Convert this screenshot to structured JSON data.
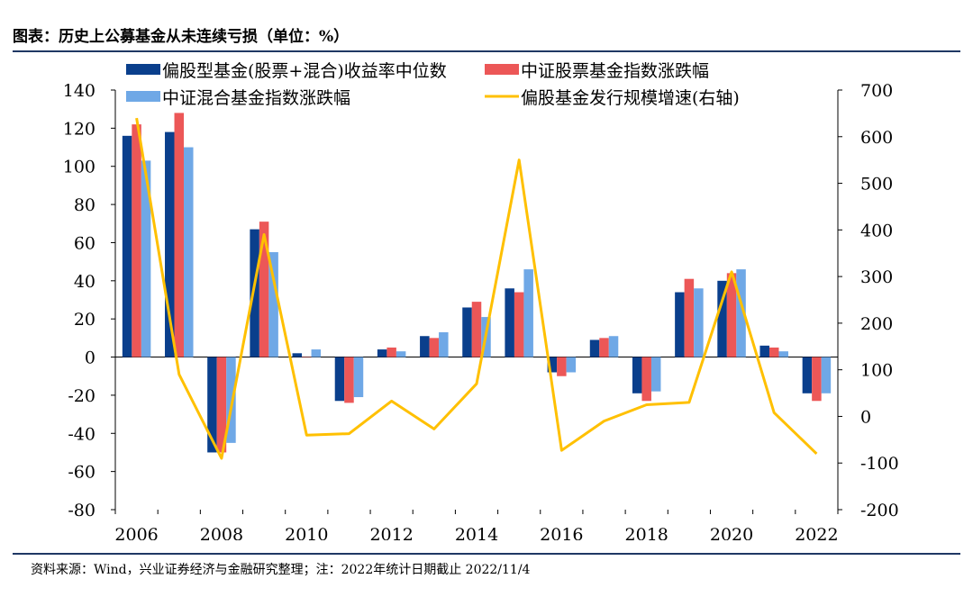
{
  "header": {
    "title": "图表：历史上公募基金从未连续亏损（单位：%）"
  },
  "footer": {
    "source": "资料来源：Wind，兴业证券经济与金融研究整理；注：2022年统计日期截止 2022/11/4"
  },
  "colors": {
    "bar1": "#0a3f8c",
    "bar2": "#ec5757",
    "bar3": "#6fa8e6",
    "line": "#ffc000",
    "rule": "#1f3864"
  },
  "chart_data": {
    "type": "bar",
    "title": "",
    "xlabel": "",
    "ylabel": "",
    "x": [
      2006,
      2007,
      2008,
      2009,
      2010,
      2011,
      2012,
      2013,
      2014,
      2015,
      2016,
      2017,
      2018,
      2019,
      2020,
      2021,
      2022
    ],
    "x_tick_labels": [
      "2006",
      "2008",
      "2010",
      "2012",
      "2014",
      "2016",
      "2018",
      "2020",
      "2022"
    ],
    "ylim": [
      -80,
      140
    ],
    "y_ticks": [
      -80,
      -60,
      -40,
      -20,
      0,
      20,
      40,
      60,
      80,
      100,
      120,
      140
    ],
    "y2lim": [
      -200,
      700
    ],
    "y2_ticks": [
      -200,
      -100,
      0,
      100,
      200,
      300,
      400,
      500,
      600,
      700
    ],
    "series": [
      {
        "name": "偏股型基金(股票+混合)收益率中位数",
        "kind": "bar",
        "axis": "left",
        "values": [
          116,
          118,
          -50,
          67,
          2,
          -23,
          4,
          11,
          26,
          36,
          -8,
          9,
          -19,
          34,
          40,
          6,
          -19
        ]
      },
      {
        "name": "中证股票基金指数涨跌幅",
        "kind": "bar",
        "axis": "left",
        "values": [
          122,
          128,
          -50,
          71,
          0,
          -24,
          5,
          10,
          29,
          34,
          -10,
          10,
          -23,
          41,
          44,
          5,
          -23
        ]
      },
      {
        "name": "中证混合基金指数涨跌幅",
        "kind": "bar",
        "axis": "left",
        "values": [
          103,
          110,
          -45,
          55,
          4,
          -21,
          3,
          13,
          21,
          46,
          -8,
          11,
          -18,
          36,
          46,
          3,
          -19
        ]
      },
      {
        "name": "偏股基金发行规模增速(右轴)",
        "kind": "line",
        "axis": "right",
        "values": [
          640,
          90,
          -90,
          390,
          -40,
          -37,
          33,
          -27,
          70,
          550,
          -73,
          -10,
          25,
          30,
          310,
          8,
          -80
        ]
      }
    ],
    "legend": "top"
  }
}
